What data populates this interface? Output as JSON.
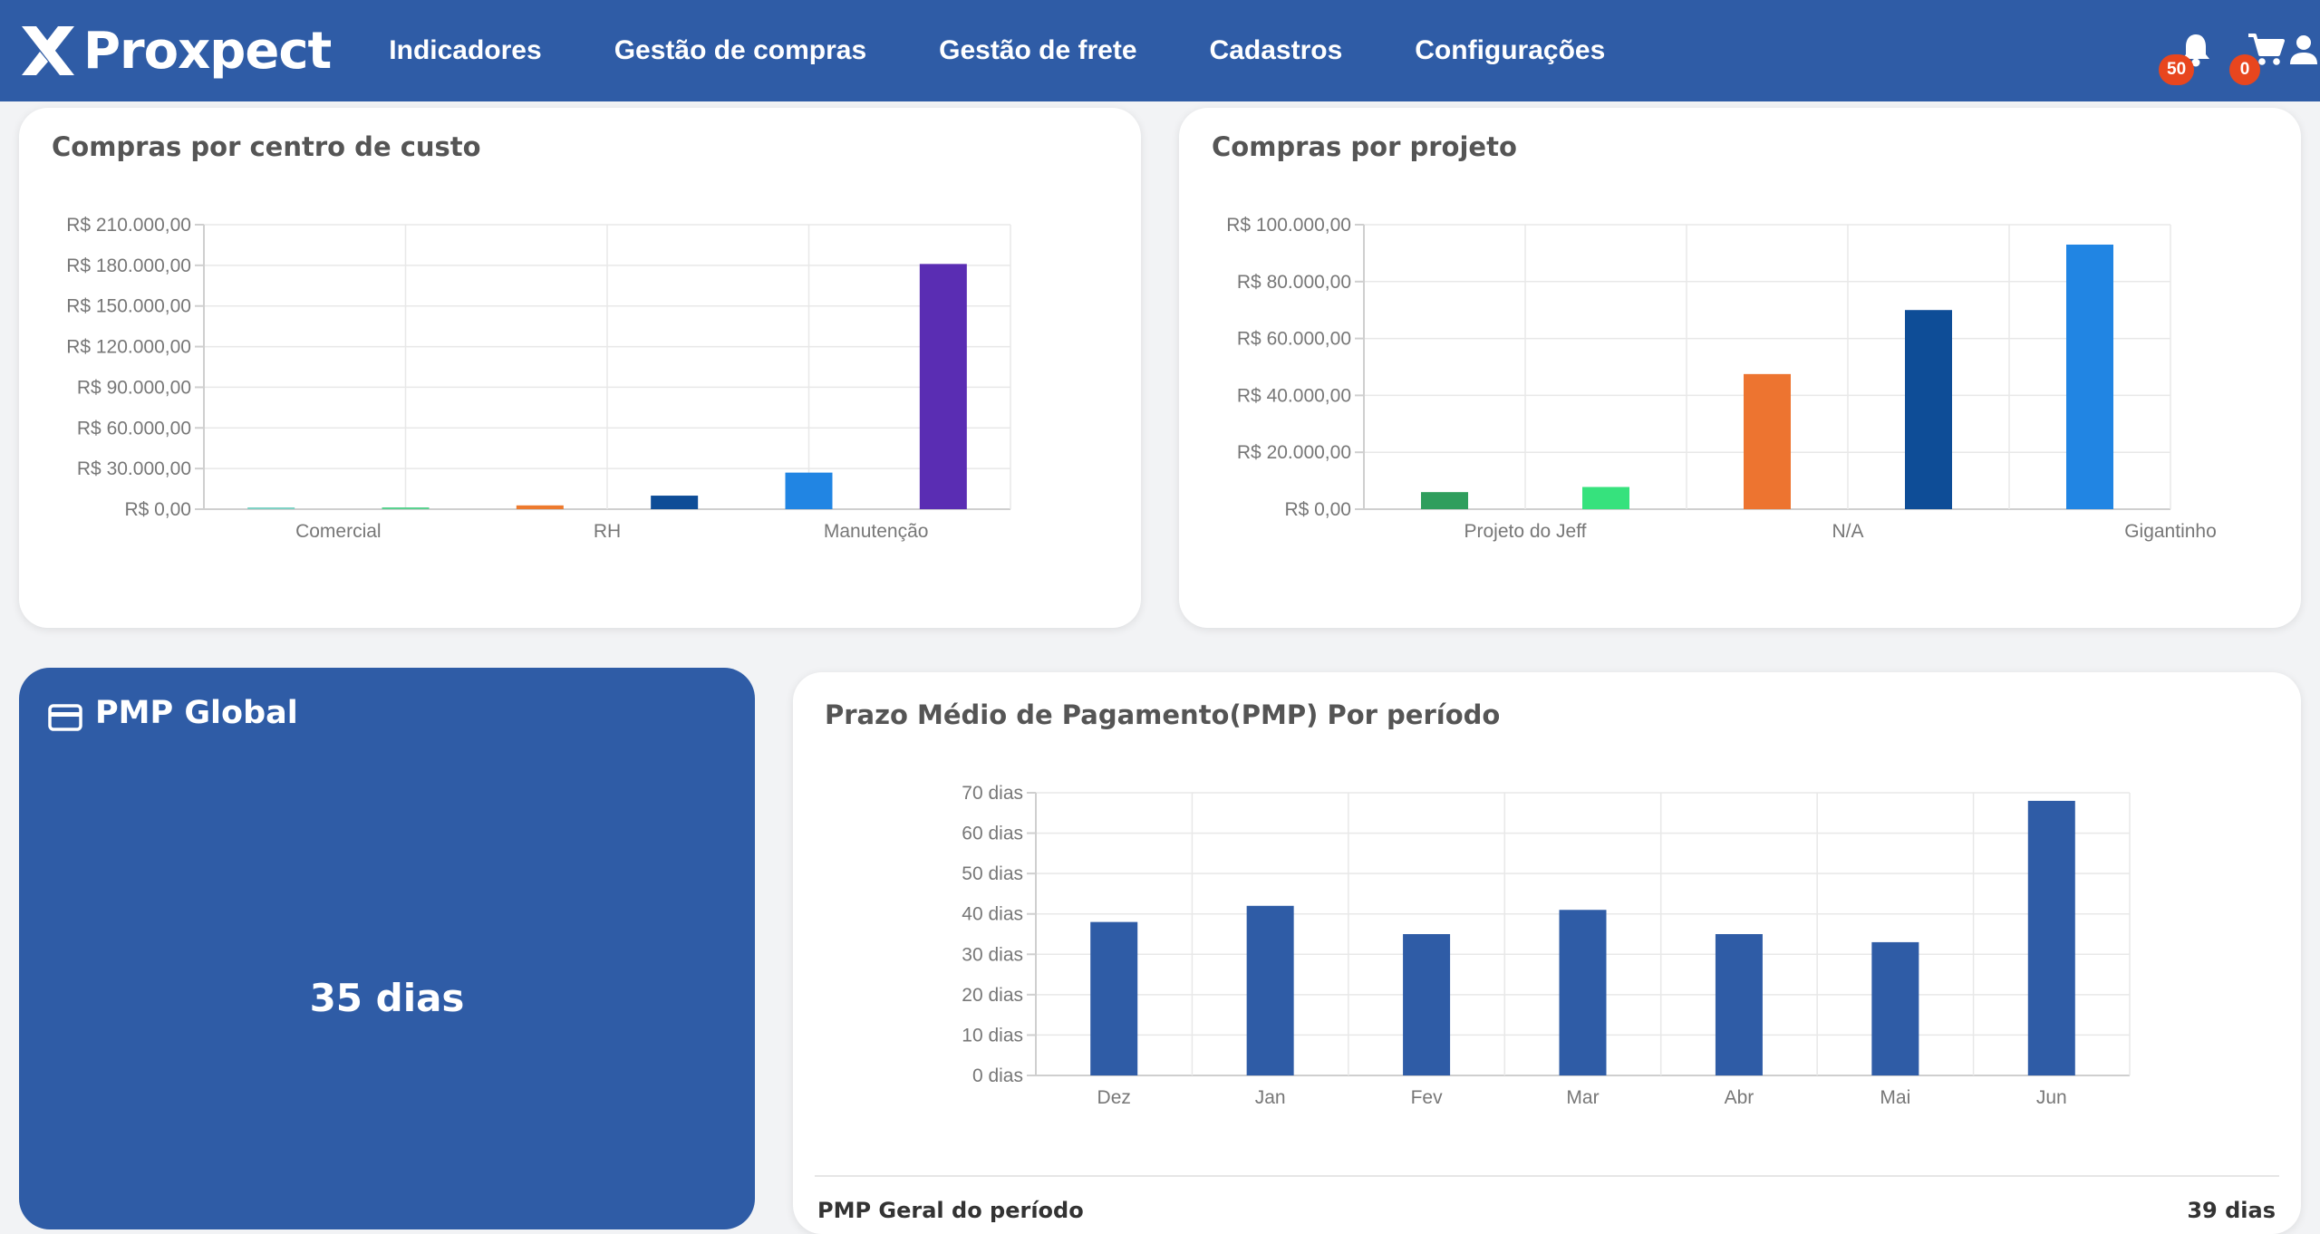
{
  "header": {
    "brand": "Proxpect",
    "nav": [
      {
        "label": "Indicadores"
      },
      {
        "label": "Gestão de compras"
      },
      {
        "label": "Gestão de frete"
      },
      {
        "label": "Cadastros"
      },
      {
        "label": "Configurações"
      }
    ],
    "notifications_count": "50",
    "cart_count": "0",
    "icons": [
      "bell-icon",
      "cart-icon",
      "user-icon"
    ],
    "colors": {
      "bar": "#2f5ca6",
      "badge": "#e8461e"
    }
  },
  "cards": {
    "cost_center": {
      "title": "Compras por centro de custo"
    },
    "project": {
      "title": "Compras por projeto"
    },
    "pmp_global": {
      "title": "PMP Global",
      "value": "35 dias",
      "icon": "credit-card-icon"
    },
    "pmp_period": {
      "title": "Prazo Médio de Pagamento(PMP) Por período",
      "summary_label": "PMP Geral do período",
      "summary_value": "39 dias"
    }
  },
  "chart_data": [
    {
      "type": "bar",
      "title": "Compras por centro de custo",
      "y_tick_labels": [
        "R$ 0,00",
        "R$ 30.000,00",
        "R$ 60.000,00",
        "R$ 90.000,00",
        "R$ 120.000,00",
        "R$ 150.000,00",
        "R$ 180.000,00",
        "R$ 210.000,00"
      ],
      "ylim": [
        0,
        210000
      ],
      "x_tick_labels": [
        {
          "label": "Comercial",
          "after_bar": 0
        },
        {
          "label": "RH",
          "after_bar": 2
        },
        {
          "label": "Manutenção",
          "after_bar": 4
        }
      ],
      "values": [
        400,
        900,
        2800,
        10000,
        27000,
        181000
      ],
      "colors": [
        "#7fd1c4",
        "#5ad18f",
        "#ed7a2e",
        "#0e4d97",
        "#2185e3",
        "#5a2db3"
      ],
      "grid": true
    },
    {
      "type": "bar",
      "title": "Compras por projeto",
      "y_tick_labels": [
        "R$ 0,00",
        "R$ 20.000,00",
        "R$ 40.000,00",
        "R$ 60.000,00",
        "R$ 80.000,00",
        "R$ 100.000,00"
      ],
      "ylim": [
        0,
        100000
      ],
      "x_tick_labels": [
        {
          "label": "Projeto do Jeff",
          "after_bar": 0
        },
        {
          "label": "N/A",
          "after_bar": 2
        },
        {
          "label": "Gigantinho",
          "after_bar": 4
        }
      ],
      "values": [
        6000,
        7800,
        47500,
        70000,
        93000
      ],
      "colors": [
        "#2f9e5d",
        "#36e27d",
        "#ed7430",
        "#0e4d97",
        "#2185e3"
      ],
      "grid": true
    },
    {
      "type": "bar",
      "title": "Prazo Médio de Pagamento(PMP) Por período",
      "y_tick_labels": [
        "0 dias",
        "10 dias",
        "20 dias",
        "30 dias",
        "40 dias",
        "50 dias",
        "60 dias",
        "70 dias"
      ],
      "ylim": [
        0,
        70
      ],
      "categories": [
        "Dez",
        "Jan",
        "Fev",
        "Mar",
        "Abr",
        "Mai",
        "Jun"
      ],
      "values": [
        38,
        42,
        35,
        41,
        35,
        33,
        68
      ],
      "colors": [
        "#2f5ca6"
      ],
      "grid": true
    }
  ]
}
